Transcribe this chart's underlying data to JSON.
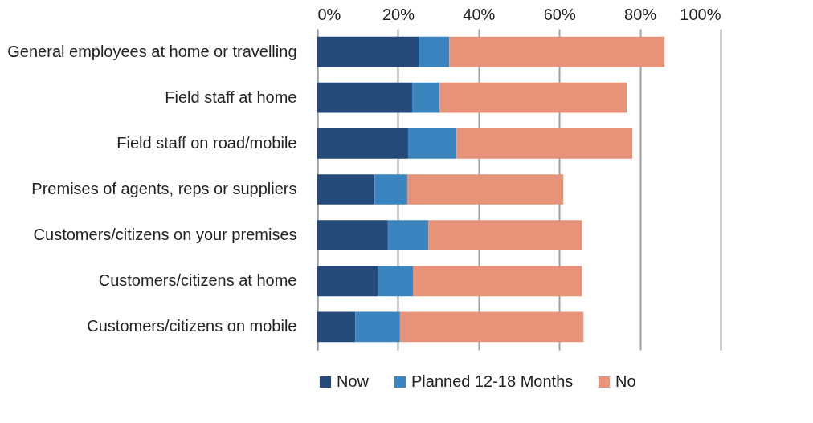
{
  "chart_data": {
    "type": "bar",
    "orientation": "horizontal",
    "stacked": true,
    "categories": [
      "General employees at home or travelling",
      "Field staff at home",
      "Field staff on road/mobile",
      "Premises of agents, reps or suppliers",
      "Customers/citizens on your premises",
      "Customers/citizens at home",
      "Customers/citizens on mobile"
    ],
    "series": [
      {
        "name": "Now",
        "color": "#244a7a",
        "values": [
          25.1,
          23.5,
          22.5,
          14.2,
          17.5,
          15.0,
          9.4
        ]
      },
      {
        "name": "Planned 12-18 Months",
        "color": "#3a85bf",
        "values": [
          7.6,
          6.8,
          12.0,
          8.1,
          10.0,
          8.7,
          11.1
        ]
      },
      {
        "name": "No",
        "color": "#e79379",
        "values": [
          53.4,
          46.4,
          43.6,
          38.7,
          38.1,
          41.9,
          45.5
        ]
      }
    ],
    "xlim": [
      0,
      100
    ],
    "xticks": [
      {
        "value": 0,
        "label": "0%"
      },
      {
        "value": 20,
        "label": "20%"
      },
      {
        "value": 40,
        "label": "40%"
      },
      {
        "value": 60,
        "label": "60%"
      },
      {
        "value": 80,
        "label": "80%"
      },
      {
        "value": 100,
        "label": "100%"
      }
    ],
    "grid": "x",
    "legend": "bottom"
  }
}
